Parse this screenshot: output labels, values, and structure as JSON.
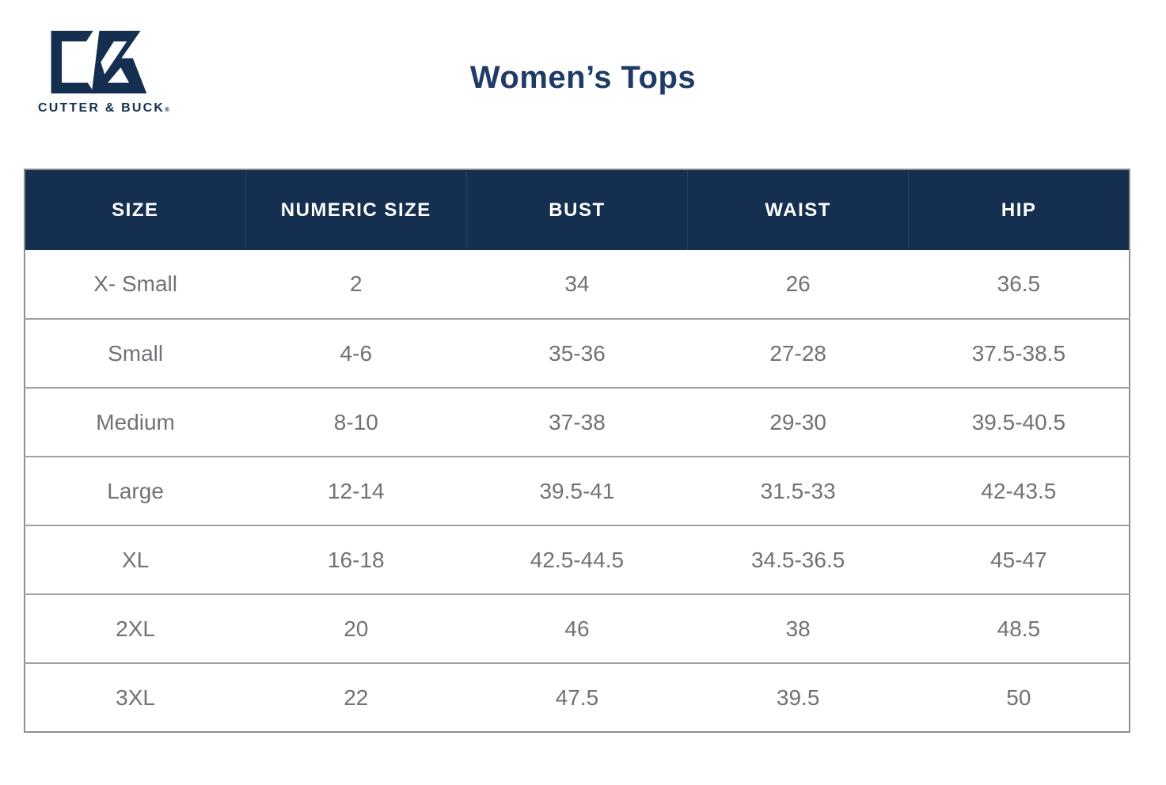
{
  "brand": {
    "wordmark": "CUTTER & BUCK",
    "trademark": "®"
  },
  "chart_data": {
    "type": "table",
    "title": "Women’s Tops",
    "columns": [
      "SIZE",
      "NUMERIC SIZE",
      "BUST",
      "WAIST",
      "HIP"
    ],
    "rows": [
      [
        "X- Small",
        "2",
        "34",
        "26",
        "36.5"
      ],
      [
        "Small",
        "4-6",
        "35-36",
        "27-28",
        "37.5-38.5"
      ],
      [
        "Medium",
        "8-10",
        "37-38",
        "29-30",
        "39.5-40.5"
      ],
      [
        "Large",
        "12-14",
        "39.5-41",
        "31.5-33",
        "42-43.5"
      ],
      [
        "XL",
        "16-18",
        "42.5-44.5",
        "34.5-36.5",
        "45-47"
      ],
      [
        "2XL",
        "20",
        "46",
        "38",
        "48.5"
      ],
      [
        "3XL",
        "22",
        "47.5",
        "39.5",
        "50"
      ]
    ],
    "legend": "none",
    "grid": "horizontal-row-separators"
  },
  "colors": {
    "navy": "#142f4f",
    "title": "#1e3a66",
    "body_text": "#6f7277",
    "border_outer": "#8f8f8f",
    "border_row": "#a0a0a0",
    "header_text": "#ffffff",
    "bg": "#ffffff"
  }
}
